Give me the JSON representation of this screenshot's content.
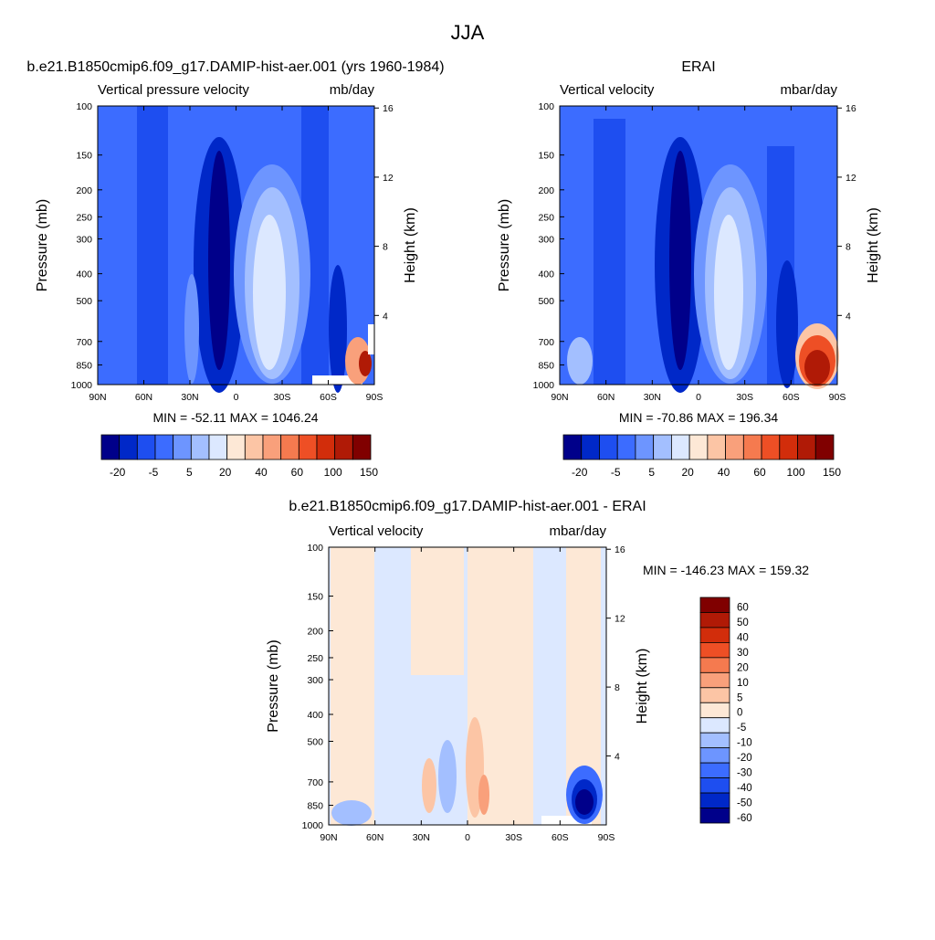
{
  "page_title": "JJA",
  "colors": {
    "blue_extreme": "#000080",
    "red_extreme": "#800000",
    "background": "#ffffff"
  },
  "chart_data": [
    {
      "type": "heatmap",
      "id": "model",
      "title": "b.e21.B1850cmip6.f09_g17.DAMIP-hist-aer.001 (yrs 1960-1984)",
      "left_label": "Vertical pressure velocity",
      "right_label": "mb/day",
      "ylabel": "Pressure (mb)",
      "y2label": "Height (km)",
      "x_ticks": [
        "90N",
        "60N",
        "30N",
        "0",
        "30S",
        "60S",
        "90S"
      ],
      "y_ticks": [
        100,
        150,
        200,
        250,
        300,
        400,
        500,
        700,
        850,
        1000
      ],
      "y2_ticks": [
        4,
        8,
        12,
        16
      ],
      "stats": "MIN = -52.11  MAX = 1046.24",
      "colorbar_labels": [
        "-20",
        "-5",
        "5",
        "20",
        "40",
        "60",
        "100",
        "150"
      ],
      "colorbar_colors": [
        "#00008a",
        "#0028c8",
        "#1e4ef0",
        "#3c6cff",
        "#6d95ff",
        "#a3bfff",
        "#dce8ff",
        "#fde8d6",
        "#fcc5a5",
        "#f9a07b",
        "#f57a4f",
        "#ee4f25",
        "#d22d0b",
        "#b01a06",
        "#800000"
      ],
      "features": [
        {
          "name": "background",
          "value": -10
        },
        {
          "name": "subtropical-subsidence-sh",
          "lat": -22,
          "value": 8
        },
        {
          "name": "itcz-ascent",
          "lat": 10,
          "value": -42
        },
        {
          "name": "antarctic-surface-subsidence",
          "lat": -82,
          "value": 120
        }
      ]
    },
    {
      "type": "heatmap",
      "id": "obs",
      "title": "ERAI",
      "left_label": "Vertical velocity",
      "right_label": "mbar/day",
      "ylabel": "Pressure (mb)",
      "y2label": "Height (km)",
      "x_ticks": [
        "90N",
        "60N",
        "30N",
        "0",
        "30S",
        "60S",
        "90S"
      ],
      "y_ticks": [
        100,
        150,
        200,
        250,
        300,
        400,
        500,
        700,
        850,
        1000
      ],
      "y2_ticks": [
        4,
        8,
        12,
        16
      ],
      "stats": "MIN = -70.86  MAX = 196.34",
      "colorbar_labels": [
        "-20",
        "-5",
        "5",
        "20",
        "40",
        "60",
        "100",
        "150"
      ],
      "colorbar_colors": [
        "#00008a",
        "#0028c8",
        "#1e4ef0",
        "#3c6cff",
        "#6d95ff",
        "#a3bfff",
        "#dce8ff",
        "#fde8d6",
        "#fcc5a5",
        "#f9a07b",
        "#f57a4f",
        "#ee4f25",
        "#d22d0b",
        "#b01a06",
        "#800000"
      ],
      "features": [
        {
          "name": "background",
          "value": -10
        },
        {
          "name": "subtropical-subsidence-sh",
          "lat": -22,
          "value": 8
        },
        {
          "name": "itcz-ascent",
          "lat": 10,
          "value": -45
        },
        {
          "name": "antarctic-surface-subsidence",
          "lat": -80,
          "value": 150
        }
      ]
    },
    {
      "type": "heatmap",
      "id": "diff",
      "title": "b.e21.B1850cmip6.f09_g17.DAMIP-hist-aer.001 - ERAI",
      "left_label": "Vertical velocity",
      "right_label": "mbar/day",
      "ylabel": "Pressure (mb)",
      "y2label": "Height (km)",
      "x_ticks": [
        "90N",
        "60N",
        "30N",
        "0",
        "30S",
        "60S",
        "90S"
      ],
      "y_ticks": [
        100,
        150,
        200,
        250,
        300,
        400,
        500,
        700,
        850,
        1000
      ],
      "y2_ticks": [
        4,
        8,
        12,
        16
      ],
      "stats": "MIN = -146.23  MAX = 159.32",
      "colorbar_labels": [
        "60",
        "50",
        "40",
        "30",
        "20",
        "10",
        "5",
        "0",
        "-5",
        "-10",
        "-20",
        "-30",
        "-40",
        "-50",
        "-60"
      ],
      "colorbar_colors": [
        "#800000",
        "#b01a06",
        "#d22d0b",
        "#ee4f25",
        "#f57a4f",
        "#f9a07b",
        "#fcc5a5",
        "#fde8d6",
        "#dce8ff",
        "#a3bfff",
        "#6d95ff",
        "#3c6cff",
        "#1e4ef0",
        "#0028c8",
        "#00008a"
      ],
      "features": [
        {
          "name": "background",
          "value": -2
        },
        {
          "name": "nh-positive-band",
          "lat": 70,
          "value": 3
        },
        {
          "name": "sh-positive-band",
          "lat": 5,
          "value": 3
        },
        {
          "name": "antarctic-negative",
          "lat": -80,
          "value": -60
        }
      ]
    }
  ]
}
